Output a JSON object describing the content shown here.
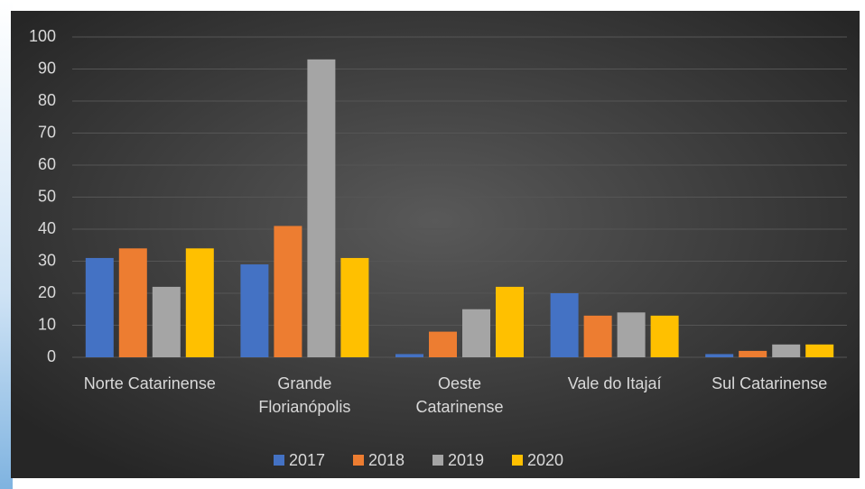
{
  "chart_data": {
    "type": "bar",
    "categories": [
      "Norte Catarinense",
      "Grande Florianópolis",
      "Oeste Catarinense",
      "Vale do Itajaí",
      "Sul Catarinense"
    ],
    "series": [
      {
        "name": "2017",
        "color": "#4472c4",
        "values": [
          31,
          29,
          1,
          20,
          1
        ]
      },
      {
        "name": "2018",
        "color": "#ed7d31",
        "values": [
          34,
          41,
          8,
          13,
          2
        ]
      },
      {
        "name": "2019",
        "color": "#a5a5a5",
        "values": [
          22,
          93,
          15,
          14,
          4
        ]
      },
      {
        "name": "2020",
        "color": "#ffc000",
        "values": [
          34,
          31,
          22,
          13,
          4
        ]
      }
    ],
    "ylim": [
      0,
      100
    ],
    "yticks": [
      0,
      10,
      20,
      30,
      40,
      50,
      60,
      70,
      80,
      90,
      100
    ],
    "grid": true,
    "legend": "bottom"
  }
}
